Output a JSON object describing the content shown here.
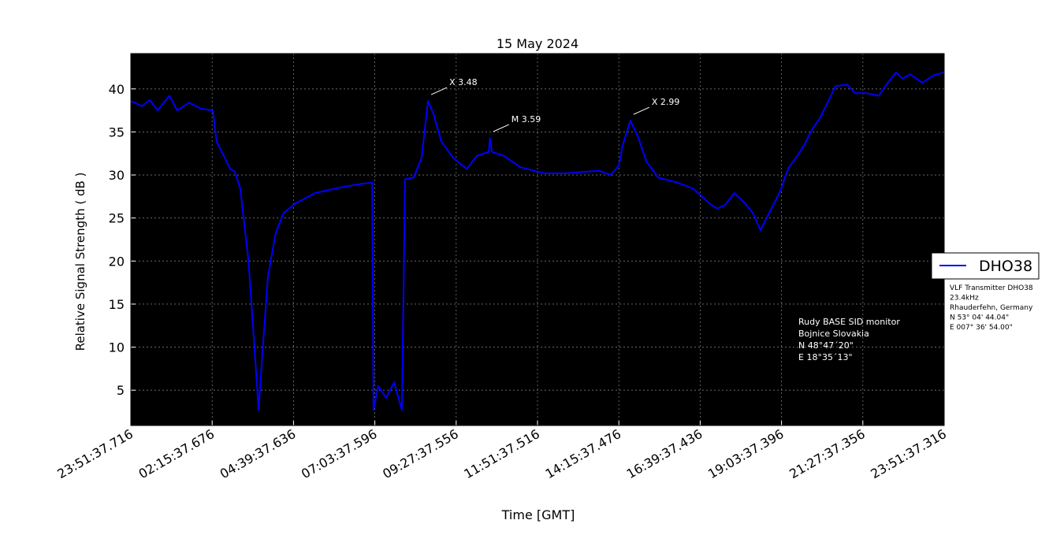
{
  "chart_data": {
    "type": "line",
    "title": "15 May 2024",
    "x_label": "Time [GMT]",
    "y_label": "Relative Signal Strength ( dB )",
    "xlim": [
      0,
      24
    ],
    "ylim": [
      0.9,
      44.1
    ],
    "xticks": [
      {
        "value": 0,
        "label": "23:51:37.716"
      },
      {
        "value": 2.4,
        "label": "02:15:37.676"
      },
      {
        "value": 4.8,
        "label": "04:39:37.636"
      },
      {
        "value": 7.2,
        "label": "07:03:37.596"
      },
      {
        "value": 9.6,
        "label": "09:27:37.556"
      },
      {
        "value": 12,
        "label": "11:51:37.516"
      },
      {
        "value": 14.4,
        "label": "14:15:37.476"
      },
      {
        "value": 16.8,
        "label": "16:39:37.436"
      },
      {
        "value": 19.2,
        "label": "19:03:37.396"
      },
      {
        "value": 21.6,
        "label": "21:27:37.356"
      },
      {
        "value": 24,
        "label": "23:51:37.316"
      }
    ],
    "yticks": [
      5,
      10,
      15,
      20,
      25,
      30,
      35,
      40
    ],
    "grid": true,
    "background": "#000000",
    "legend": "right",
    "x": [
      0,
      0.33,
      0.56,
      0.79,
      1.14,
      1.37,
      1.72,
      2.07,
      2.42,
      2.53,
      2.77,
      2.93,
      3.07,
      3.23,
      3.47,
      3.63,
      3.77,
      3.88,
      4.05,
      4.28,
      4.51,
      4.86,
      5.44,
      6.14,
      6.84,
      7.12,
      7.16,
      7.3,
      7.53,
      7.77,
      8.0,
      8.09,
      8.35,
      8.58,
      8.77,
      8.93,
      9.16,
      9.51,
      9.91,
      10.21,
      10.56,
      10.6,
      10.65,
      11.02,
      11.49,
      12.19,
      12.88,
      13.81,
      14.16,
      14.4,
      14.51,
      14.74,
      14.98,
      15.21,
      15.56,
      16.14,
      16.6,
      17.07,
      17.3,
      17.53,
      17.81,
      18.12,
      18.35,
      18.58,
      18.93,
      19.16,
      19.4,
      19.63,
      19.86,
      20.09,
      20.33,
      20.56,
      20.79,
      21.14,
      21.37,
      21.72,
      22.07,
      22.3,
      22.58,
      22.77,
      23.0,
      23.35,
      23.7,
      24.0
    ],
    "series": [
      {
        "name": "DHO38",
        "color": "#0000ff",
        "values": [
          38.6,
          38.0,
          38.7,
          37.5,
          39.2,
          37.5,
          38.4,
          37.7,
          37.5,
          33.9,
          32.0,
          30.7,
          30.4,
          28.4,
          20.1,
          11.0,
          2.7,
          9.1,
          18.3,
          23.3,
          25.6,
          26.7,
          27.9,
          28.5,
          29.0,
          29.1,
          2.7,
          5.5,
          4.1,
          5.9,
          2.7,
          29.5,
          29.7,
          32.0,
          38.6,
          37.1,
          33.9,
          32.0,
          30.7,
          32.2,
          32.7,
          34.3,
          32.7,
          32.2,
          30.9,
          30.2,
          30.2,
          30.5,
          30.0,
          31.1,
          33.4,
          36.3,
          34.3,
          31.6,
          29.7,
          29.1,
          28.4,
          26.7,
          26.1,
          26.5,
          27.9,
          26.7,
          25.6,
          23.6,
          26.3,
          28.1,
          30.8,
          32.0,
          33.4,
          35.2,
          36.6,
          38.4,
          40.3,
          40.5,
          39.5,
          39.5,
          39.2,
          40.5,
          41.9,
          41.2,
          41.7,
          40.7,
          41.6,
          41.9
        ]
      }
    ],
    "annotations": [
      {
        "text": "X 3.48",
        "x": 8.77,
        "y": 38.6
      },
      {
        "text": "M 3.59",
        "x": 10.6,
        "y": 34.3
      },
      {
        "text": "X 2.99",
        "x": 14.74,
        "y": 36.3
      }
    ],
    "station_note": [
      "Rudy BASE SID monitor",
      "Bojnice Slovakia",
      "N 48°47´20\"",
      "E 18°35´13\""
    ],
    "transmitter_note": [
      "VLF Transmitter DHO38",
      "23.4kHz",
      "Rhauderfehn, Germany",
      "N 53° 04' 44.04\"",
      "E 007° 36' 54.00\""
    ]
  }
}
